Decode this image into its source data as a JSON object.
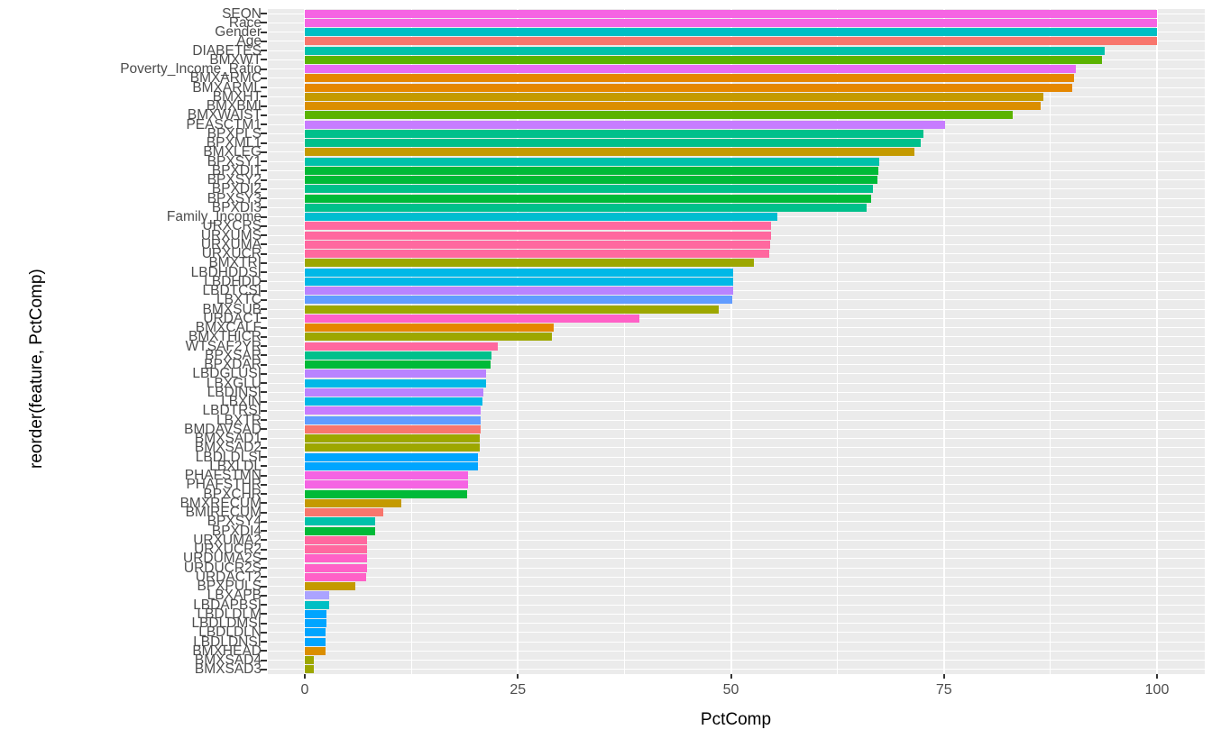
{
  "chart_data": {
    "type": "bar",
    "orientation": "horizontal",
    "title": "",
    "xlabel": "PctComp",
    "ylabel": "reorder(feature, PctComp)",
    "xlim": [
      0,
      100
    ],
    "x_major_ticks": [
      0,
      25,
      50,
      75,
      100
    ],
    "x_minor_ticks": [
      12.5,
      37.5,
      62.5,
      87.5
    ],
    "grid": "on",
    "legend_position": "none",
    "panel_background": "#EBEBEB",
    "grid_color": "#FFFFFF",
    "axis_text_color": "#4D4D4D",
    "categories": [
      "SEQN",
      "Race",
      "Gender",
      "Age",
      "DIABETES",
      "BMXWT",
      "Poverty_Income_Ratio",
      "BMXARMC",
      "BMXARML",
      "BMXHT",
      "BMXBMI",
      "BMXWAIST",
      "PEASCTM1",
      "BPXPLS",
      "BPXML1",
      "BMXLEG",
      "BPXSY1",
      "BPXDI1",
      "BPXSY2",
      "BPXDI2",
      "BPXSY3",
      "BPXDI3",
      "Family_Income",
      "URXCRS",
      "URXUMS",
      "URXUMA",
      "URXUCR",
      "BMXTRI",
      "LBDHDDSI",
      "LBDHDD",
      "LBDTCSI",
      "LBXTC",
      "BMXSUB",
      "URDACT",
      "BMXCALF",
      "BMXTHICR",
      "WTSAF2YR",
      "BPXSAR",
      "BPXDAR",
      "LBDGLUSI",
      "LBXGLU",
      "LBDINSI",
      "LBXIN",
      "LBDTRSI",
      "LBXTR",
      "BMDAVSAD",
      "BMXSAD1",
      "BMXSAD2",
      "LBDLDLSI",
      "LBXLDL",
      "PHAFSTMN",
      "PHAFSTHR",
      "BPXCHR",
      "BMXRECUM",
      "BMIRECUM",
      "BPXSY4",
      "BPXDI4",
      "URXUMA2",
      "URXUCR2",
      "URDUMA2S",
      "URDUCR2S",
      "URDACT2",
      "BPXPULS",
      "LBXAPB",
      "LBDAPBSI",
      "LBDLDLM",
      "LBDLDMSI",
      "LBDLDLN",
      "LBDLDNSI",
      "BMXHEAD",
      "BMXSAD4",
      "BMXSAD3"
    ],
    "values": [
      100,
      100,
      100,
      100,
      93.9,
      93.5,
      90.5,
      90.3,
      90.1,
      86.7,
      86.3,
      83.1,
      75.1,
      72.6,
      72.3,
      71.5,
      67.4,
      67.3,
      67.2,
      66.7,
      66.5,
      65.9,
      55.5,
      54.7,
      54.7,
      54.6,
      54.5,
      52.7,
      50.3,
      50.3,
      50.3,
      50.2,
      48.6,
      39.3,
      29.2,
      29.0,
      22.6,
      21.9,
      21.8,
      21.3,
      21.3,
      20.9,
      20.8,
      20.6,
      20.6,
      20.6,
      20.5,
      20.5,
      20.3,
      20.3,
      19.2,
      19.2,
      19.0,
      11.3,
      9.2,
      8.3,
      8.3,
      7.3,
      7.3,
      7.3,
      7.3,
      7.2,
      5.9,
      2.9,
      2.9,
      2.5,
      2.5,
      2.4,
      2.4,
      2.4,
      1.1,
      1.1
    ],
    "bar_colors": [
      "#F564E3",
      "#F564E3",
      "#00BFC4",
      "#F8766D",
      "#00C1AA",
      "#5BB300",
      "#E76BF3",
      "#E58700",
      "#E58700",
      "#C49A00",
      "#DB8E00",
      "#5BB300",
      "#C77CFF",
      "#00C08B",
      "#00C08B",
      "#C49A00",
      "#00C1AA",
      "#00BA38",
      "#00BA38",
      "#00C08B",
      "#00BA38",
      "#00C08B",
      "#00BDD0",
      "#FF689F",
      "#FF689F",
      "#FF689F",
      "#FF689F",
      "#9DA700",
      "#00B8E7",
      "#00B8E7",
      "#B983FF",
      "#619CFF",
      "#9DA700",
      "#FF61C7",
      "#E58700",
      "#9DA700",
      "#FF689F",
      "#00C08B",
      "#00BA38",
      "#B983FF",
      "#00B8E7",
      "#B983FF",
      "#00B8E7",
      "#C77CFF",
      "#619CFF",
      "#F8766D",
      "#9DA700",
      "#9DA700",
      "#00A5FF",
      "#00A5FF",
      "#F564E3",
      "#F564E3",
      "#00BA38",
      "#C49A00",
      "#F8766D",
      "#00C1AA",
      "#00BA38",
      "#FF689F",
      "#FF689F",
      "#FF61C7",
      "#FF61C7",
      "#FF61C7",
      "#C49A00",
      "#ABA3FF",
      "#00BFC4",
      "#00A5FF",
      "#00A5FF",
      "#00A5FF",
      "#00A5FF",
      "#DB8E00",
      "#9DA700",
      "#9DA700"
    ],
    "x_tick_labels": [
      "0",
      "25",
      "50",
      "75",
      "100"
    ]
  }
}
